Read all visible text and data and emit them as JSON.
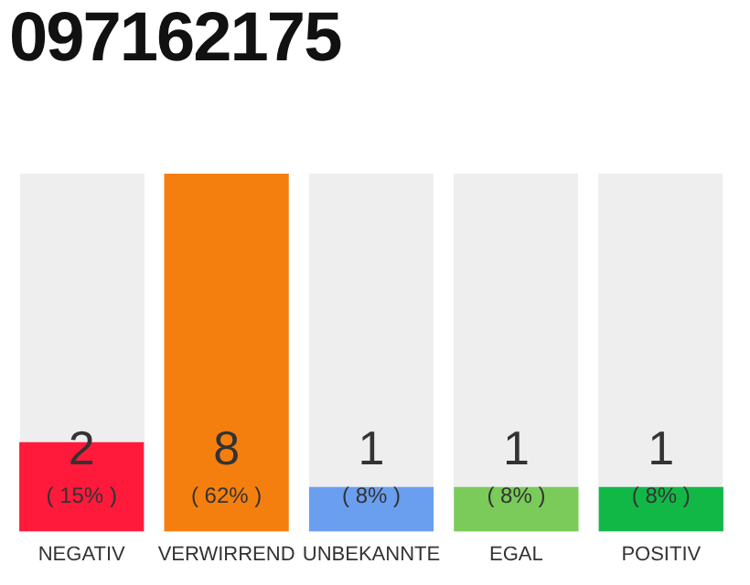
{
  "chart_data": {
    "type": "bar",
    "title": "097162175",
    "categories": [
      "NEGATIV",
      "VERWIRREND",
      "UNBEKANNTE",
      "EGAL",
      "POSITIV"
    ],
    "values": [
      2,
      8,
      1,
      1,
      1
    ],
    "colors": [
      "#ff1a3c",
      "#f57f0e",
      "#6a9ff0",
      "#7acb5a",
      "#12b846"
    ],
    "value_labels": [
      "2\n( 15% )",
      "8\n( 62% )",
      "1\n( 8% )",
      "1\n( 8% )",
      "1\n( 8% )"
    ],
    "grid": false
  }
}
